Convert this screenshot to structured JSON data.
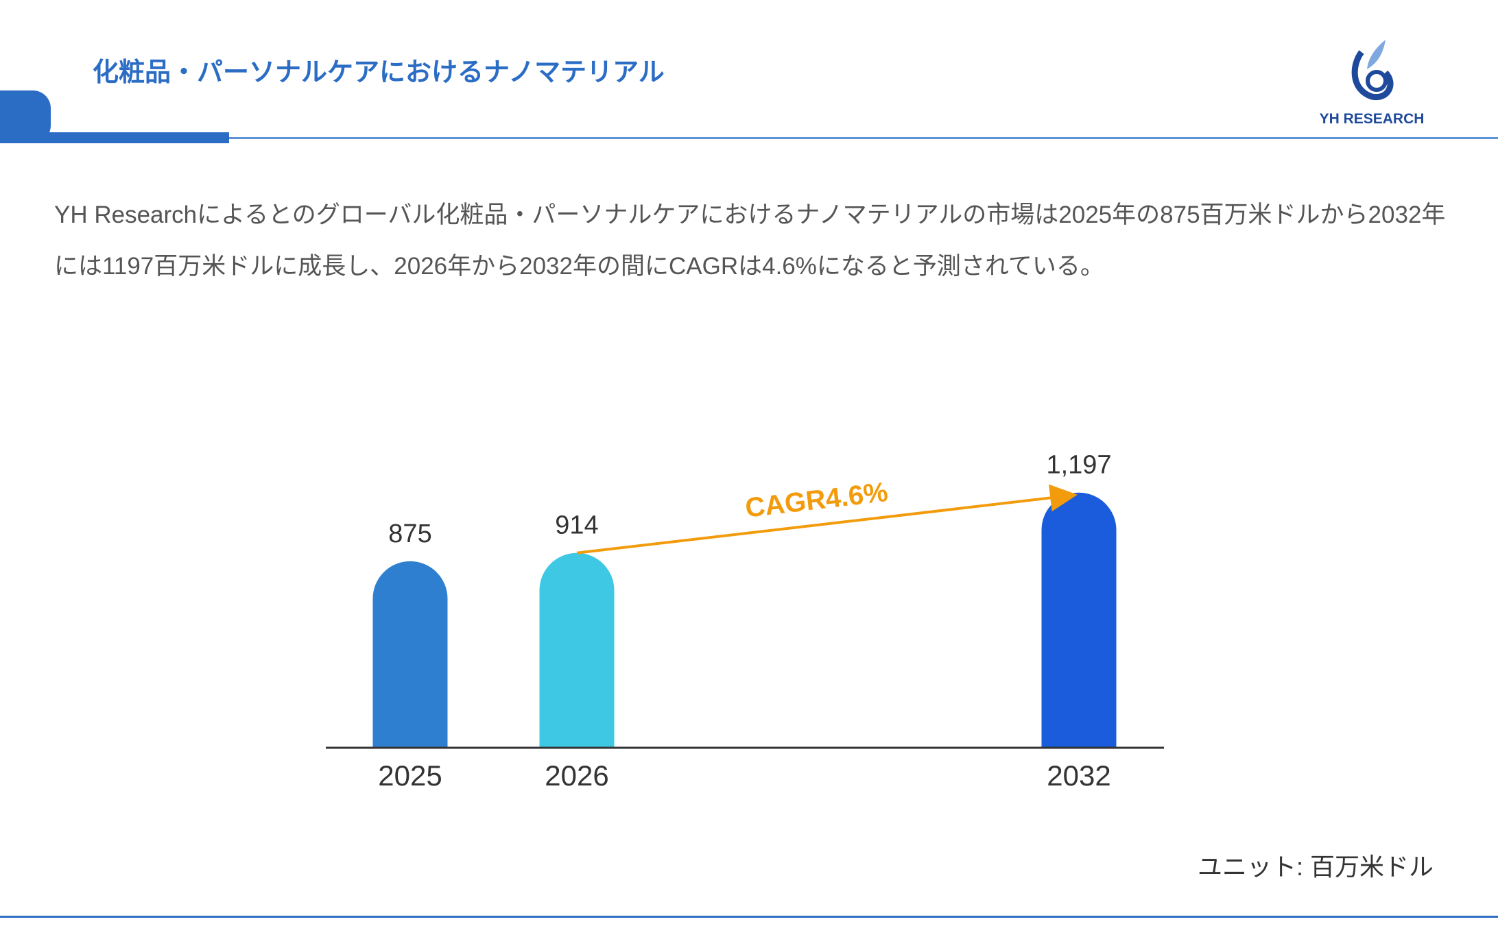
{
  "header": {
    "title": "化粧品・パーソナルケアにおけるナノマテリアル",
    "logo_text": "YH RESEARCH"
  },
  "description": "YH Researchによるとのグローバル化粧品・パーソナルケアにおけるナノマテリアルの市場は2025年の875百万米ドルから2032年には1197百万米ドルに成長し、2026年から2032年の間にCAGRは4.6%になると予測されている。",
  "unit_label": "ユニット: 百万米ドル",
  "colors": {
    "accent": "#2b6cc4",
    "arrow": "#f29b0c"
  },
  "chart_data": {
    "type": "bar",
    "categories": [
      "2025",
      "2026",
      "2032"
    ],
    "values": [
      875,
      914,
      1197
    ],
    "value_labels": [
      "875",
      "914",
      "1,197"
    ],
    "bar_colors": [
      "#2f7fd0",
      "#3ec8e4",
      "#1a5cdc"
    ],
    "annotation": {
      "text": "CAGR4.6%",
      "from": "2026",
      "to": "2032"
    },
    "grid": false,
    "legend": "none"
  }
}
